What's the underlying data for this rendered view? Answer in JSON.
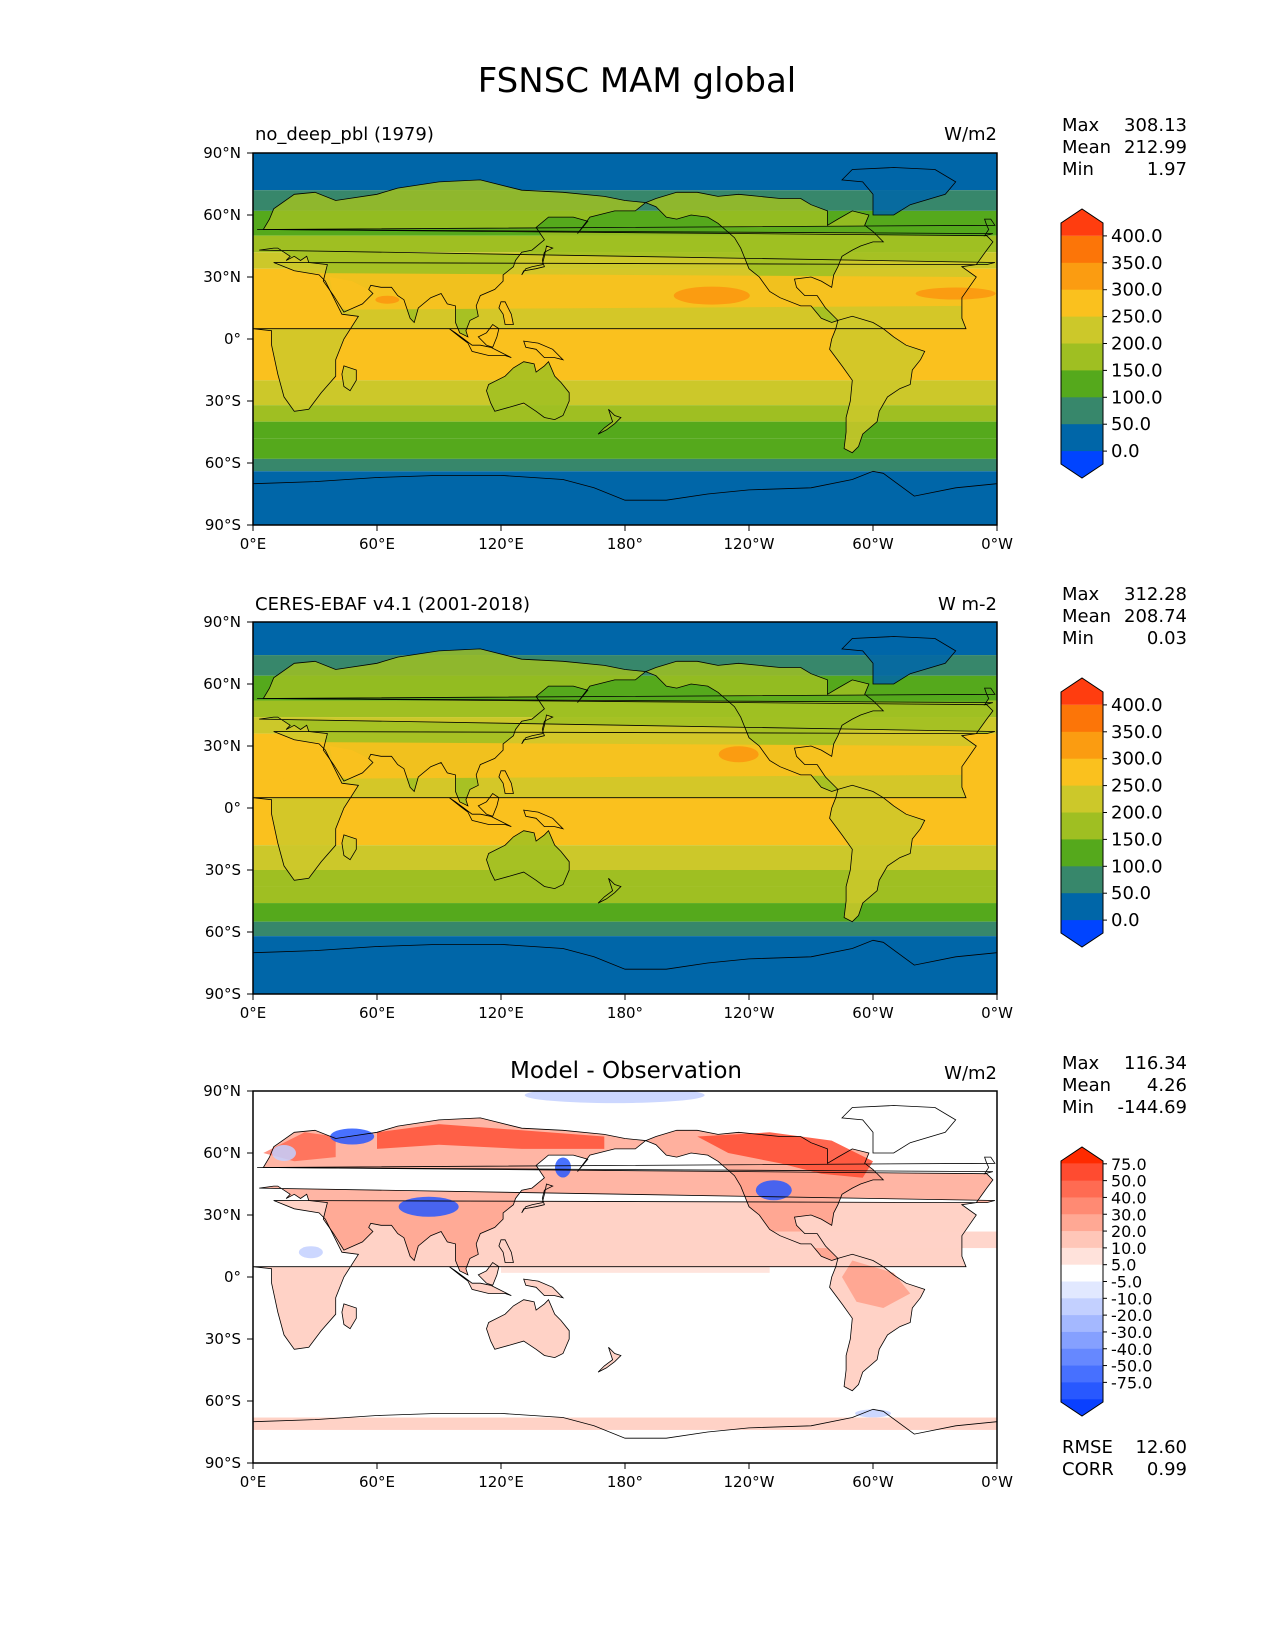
{
  "title": "FSNSC MAM global",
  "x_ticks": [
    "0°E",
    "60°E",
    "120°E",
    "180°",
    "120°W",
    "60°W",
    "0°W"
  ],
  "y_ticks": [
    "90°N",
    "60°N",
    "30°N",
    "0°",
    "30°S",
    "60°S",
    "90°S"
  ],
  "panels": [
    {
      "id": "model",
      "name": "no_deep_pbl (1979)",
      "units": "W/m2",
      "stats": [
        {
          "label": "Max",
          "value": "308.13"
        },
        {
          "label": "Mean",
          "value": "212.99"
        },
        {
          "label": "Min",
          "value": "1.97"
        }
      ],
      "colorbar": {
        "labels": [
          "400.0",
          "350.0",
          "300.0",
          "250.0",
          "200.0",
          "150.0",
          "100.0",
          "50.0",
          "0.0"
        ],
        "colors": [
          "#ff3d0f",
          "#fc7508",
          "#fb9c11",
          "#fac11e",
          "#ccc82a",
          "#9fbf22",
          "#55a91c",
          "#37876b",
          "#0066a8",
          "#0044ff"
        ]
      }
    },
    {
      "id": "obs",
      "name": "CERES-EBAF v4.1 (2001-2018)",
      "units": "W m-2",
      "stats": [
        {
          "label": "Max",
          "value": "312.28"
        },
        {
          "label": "Mean",
          "value": "208.74"
        },
        {
          "label": "Min",
          "value": "0.03"
        }
      ],
      "colorbar": {
        "labels": [
          "400.0",
          "350.0",
          "300.0",
          "250.0",
          "200.0",
          "150.0",
          "100.0",
          "50.0",
          "0.0"
        ],
        "colors": [
          "#ff3d0f",
          "#fc7508",
          "#fb9c11",
          "#fac11e",
          "#ccc82a",
          "#9fbf22",
          "#55a91c",
          "#37876b",
          "#0066a8",
          "#0044ff"
        ]
      }
    },
    {
      "id": "diff",
      "name": "Model - Observation",
      "units": "W/m2",
      "stats": [
        {
          "label": "Max",
          "value": "116.34"
        },
        {
          "label": "Mean",
          "value": "4.26"
        },
        {
          "label": "Min",
          "value": "-144.69"
        }
      ],
      "colorbar": {
        "labels": [
          "75.0",
          "50.0",
          "40.0",
          "30.0",
          "20.0",
          "10.0",
          "5.0",
          "-5.0",
          "-10.0",
          "-20.0",
          "-30.0",
          "-40.0",
          "-50.0",
          "-75.0"
        ],
        "colors": [
          "#ff2a00",
          "#ff4b30",
          "#ff6b52",
          "#ff8a73",
          "#ffa894",
          "#ffc6b8",
          "#ffe2db",
          "#ffffff",
          "#e1e8ff",
          "#c3d0ff",
          "#a4b8ff",
          "#85a0ff",
          "#6688ff",
          "#4770ff",
          "#2858ff",
          "#0a40ff"
        ]
      },
      "footer": [
        {
          "label": "RMSE",
          "value": "12.60"
        },
        {
          "label": "CORR",
          "value": "0.99"
        }
      ]
    }
  ],
  "map_colors": {
    "polar": "#0066a8",
    "subpolar": "#37876b",
    "midlat_green": "#55a91c",
    "midlat_yellowgreen": "#9fbf22",
    "subtropic": "#ccc82a",
    "tropics": "#fac11e",
    "hot": "#fb9c11",
    "coast": "#000000",
    "diff_pos_light": "#ffd2c6",
    "diff_pos_mid": "#ff9c86",
    "diff_pos_strong": "#ff4b30",
    "diff_neg_light": "#c3d0ff",
    "diff_neg_strong": "#2858ff"
  }
}
